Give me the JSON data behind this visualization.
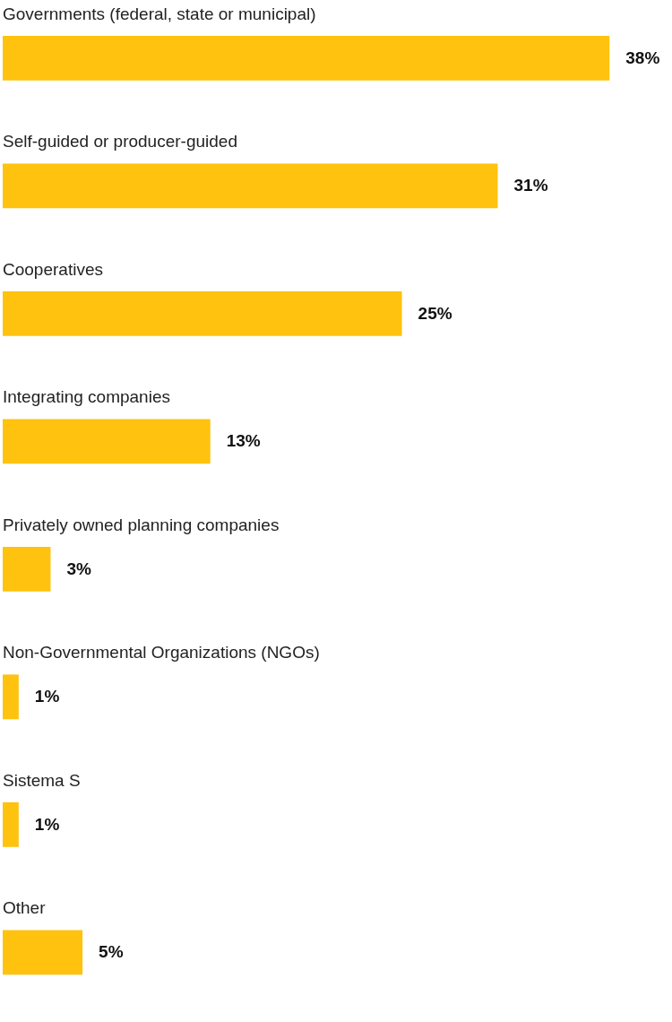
{
  "chart_data": {
    "type": "bar",
    "orientation": "horizontal",
    "categories": [
      "Governments (federal, state or municipal)",
      "Self-guided or producer-guided",
      "Cooperatives",
      "Integrating companies",
      "Privately owned planning companies",
      "Non-Governmental Organizations (NGOs)",
      "Sistema S",
      "Other"
    ],
    "values": [
      38,
      31,
      25,
      13,
      3,
      1,
      1,
      5
    ],
    "value_labels": [
      "38%",
      "31%",
      "25%",
      "13%",
      "3%",
      "1%",
      "1%",
      "5%"
    ],
    "color": "#ffc20e"
  }
}
